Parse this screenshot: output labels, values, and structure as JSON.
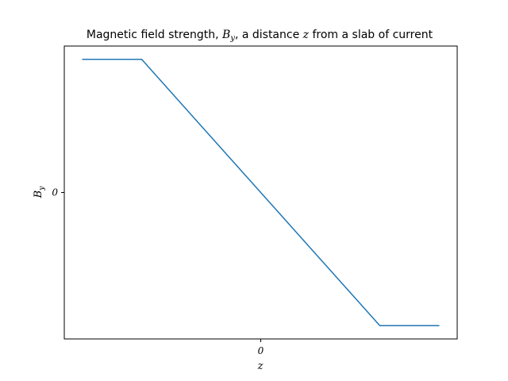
{
  "chart_data": {
    "type": "line",
    "title": {
      "part1": "Magnetic field strength, ",
      "var1": "B",
      "var1_sub": "y",
      "part2": ", a distance ",
      "var2": "z",
      "part3": " from a slab of current"
    },
    "xlabel": "z",
    "ylabel": "B",
    "ylabel_sub": "y",
    "x_ticks": [
      {
        "value": 0,
        "label": "0"
      }
    ],
    "y_ticks": [
      {
        "value": 0,
        "label": "0"
      }
    ],
    "xlim": [
      -3.3,
      3.3
    ],
    "ylim": [
      -1.1,
      1.1
    ],
    "grid": false,
    "series": [
      {
        "color": "#1f77b4",
        "x": [
          -3.0,
          -2.0,
          2.0,
          3.0
        ],
        "y": [
          1.0,
          1.0,
          -1.0,
          -1.0
        ]
      }
    ]
  }
}
